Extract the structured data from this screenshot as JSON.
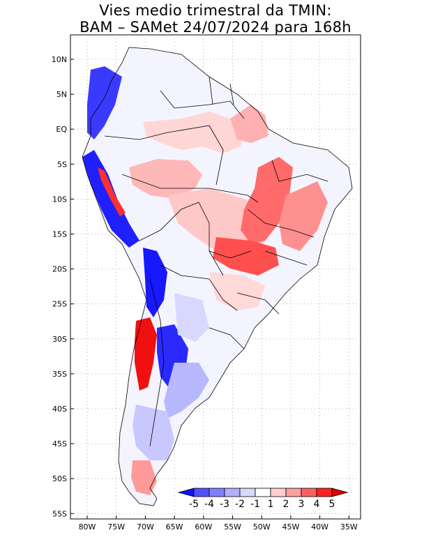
{
  "title": {
    "line1": "Vies medio trimestral da TMIN:",
    "line2": "BAM – SAMet 24/07/2024  para 168h"
  },
  "axes": {
    "lat_labels": [
      "10N",
      "5N",
      "EQ",
      "5S",
      "10S",
      "15S",
      "20S",
      "25S",
      "30S",
      "35S",
      "40S",
      "45S",
      "50S",
      "55S"
    ],
    "lon_labels": [
      "80W",
      "75W",
      "70W",
      "65W",
      "60W",
      "55W",
      "50W",
      "45W",
      "40W",
      "35W"
    ]
  },
  "colorbar": {
    "levels": [
      "-5",
      "-4",
      "-3",
      "-2",
      "-1",
      "1",
      "2",
      "3",
      "4",
      "5"
    ],
    "colors": [
      "#1010ff",
      "#5050ff",
      "#8080ff",
      "#b0b0ff",
      "#d8d8ff",
      "#ffffff",
      "#ffd0d0",
      "#ffa0a0",
      "#ff6060",
      "#ff2020",
      "#e00000"
    ]
  }
}
